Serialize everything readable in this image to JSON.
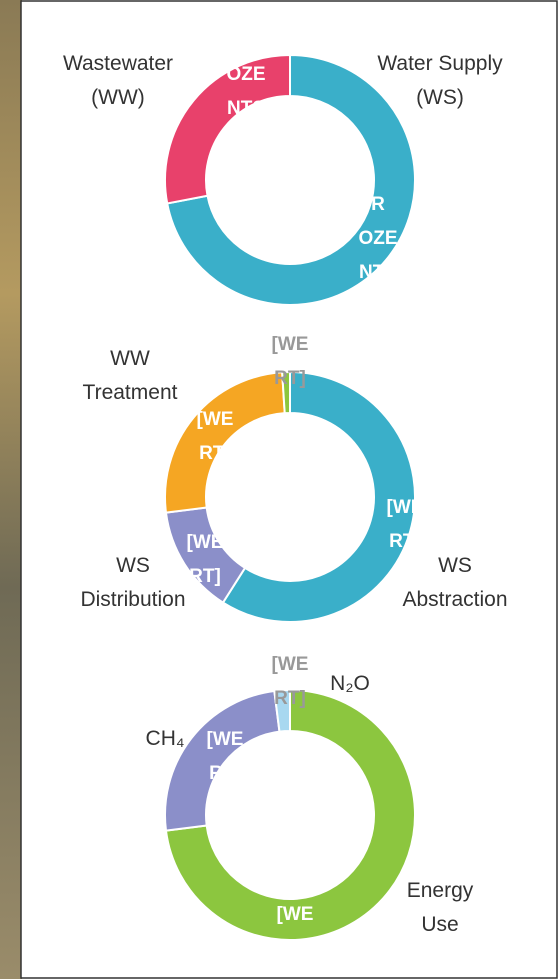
{
  "chart_data": [
    {
      "type": "donut",
      "categories": [
        "Water Supply\n(WS)",
        "Wastewater\n(WW)"
      ],
      "values": [
        72,
        28
      ],
      "colors": [
        "#3aafc9",
        "#e8416b"
      ],
      "data_labels": [
        "R\nOZE\nNTS",
        "OZE\nNTS\nAT"
      ]
    },
    {
      "type": "donut",
      "categories": [
        "WS\nAbstraction",
        "WS\nDistribution",
        "WW\nTreatment",
        null
      ],
      "values": [
        59,
        14,
        26,
        1
      ],
      "colors": [
        "#3aafc9",
        "#8b8fc9",
        "#f5a623",
        "#8cc63f"
      ],
      "data_labels": [
        "[WE\nRT]",
        "[WE\nRT]",
        "[WE\nRT]",
        "[WE\nRT]"
      ]
    },
    {
      "type": "donut",
      "categories": [
        "Energy\nUse",
        "CH₄",
        "N₂O"
      ],
      "values": [
        73,
        25,
        2
      ],
      "colors": [
        "#8cc63f",
        "#8b8fc9",
        "#a8d8f0"
      ],
      "data_labels": [
        "[WE\nRT]",
        "[WE\nRT]",
        "[WE\nRT]"
      ]
    }
  ]
}
